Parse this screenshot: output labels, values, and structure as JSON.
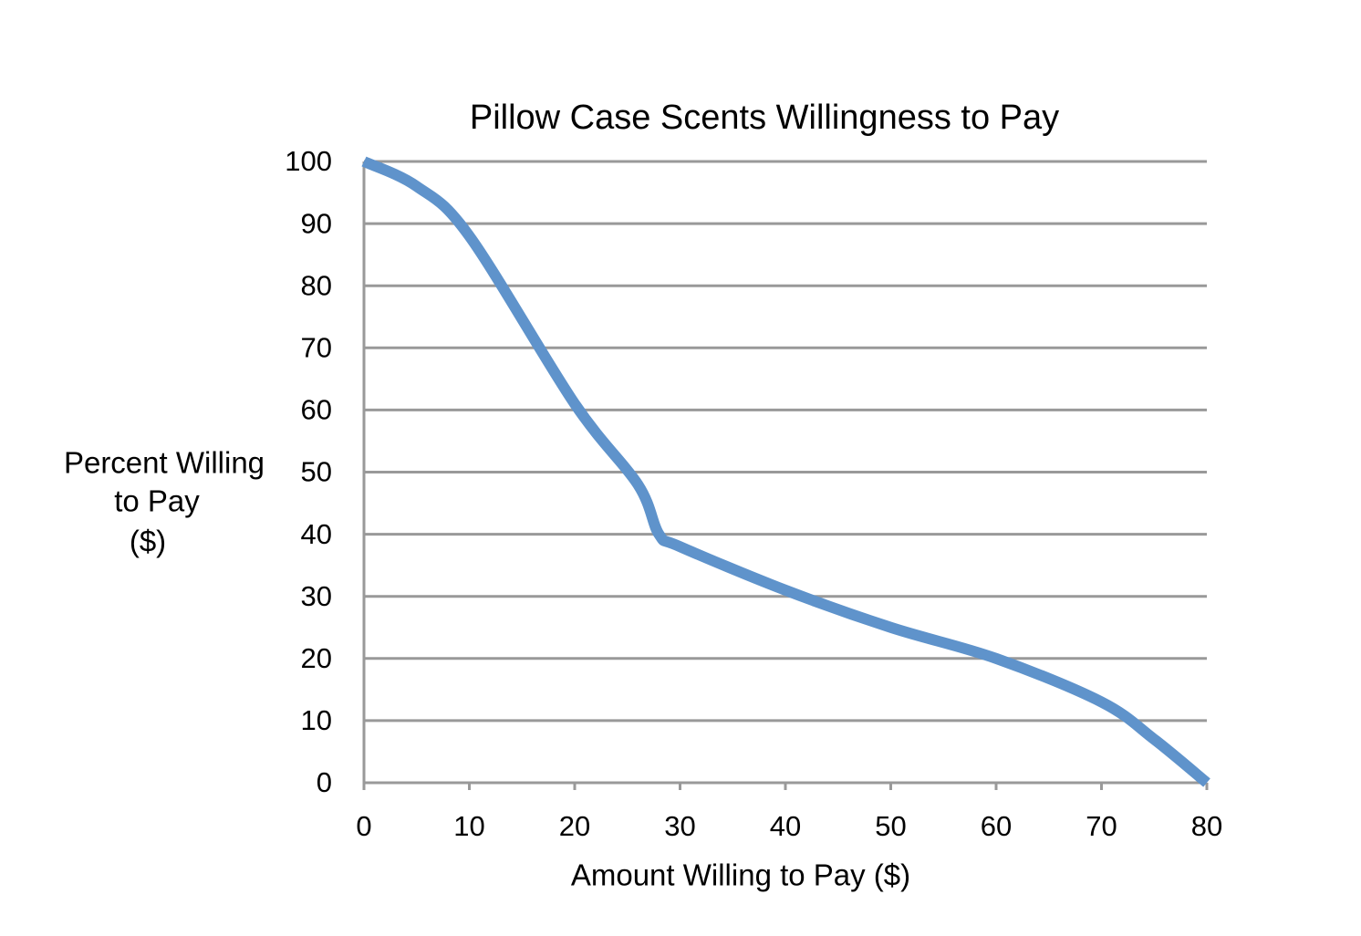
{
  "chart_data": {
    "type": "line",
    "title": "Pillow Case Scents Willingness to Pay",
    "xlabel": "Amount Willing to Pay ($)",
    "ylabel": [
      "Percent Willing",
      "to Pay",
      "($)"
    ],
    "x": [
      0,
      5,
      10,
      20,
      26,
      28,
      30,
      40,
      50,
      60,
      70,
      75,
      80
    ],
    "series": [
      {
        "color": "#5f93cb",
        "values": [
          100,
          96,
          88,
          61,
          48,
          40,
          38,
          31,
          25,
          20,
          13,
          7,
          0
        ]
      }
    ],
    "xlim": [
      0,
      80
    ],
    "xticks": [
      0,
      10,
      20,
      30,
      40,
      50,
      60,
      70,
      80
    ],
    "ylim": [
      0,
      100
    ],
    "yticks": [
      0,
      10,
      20,
      30,
      40,
      50,
      60,
      70,
      80,
      90,
      100
    ],
    "grid": true
  }
}
